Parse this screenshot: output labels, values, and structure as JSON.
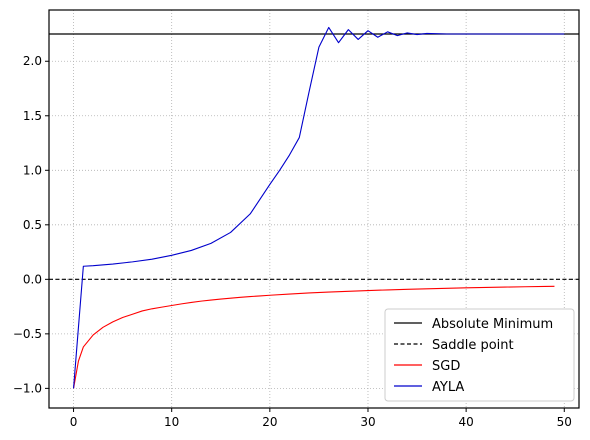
{
  "chart_data": {
    "type": "line",
    "title": "",
    "xlabel": "",
    "ylabel": "",
    "xlim": [
      -2.5,
      51.5
    ],
    "ylim": [
      -1.18,
      2.47
    ],
    "xticks": [
      0,
      10,
      20,
      30,
      40,
      50
    ],
    "yticks": [
      -1.0,
      -0.5,
      0.0,
      0.5,
      1.0,
      1.5,
      2.0
    ],
    "grid": true,
    "legend_position": "lower-right",
    "reference_lines": [
      {
        "name": "Absolute Minimum",
        "y": 2.25,
        "style": "solid",
        "color": "#000000"
      },
      {
        "name": "Saddle point",
        "y": 0.0,
        "style": "dashed",
        "color": "#000000"
      }
    ],
    "series": [
      {
        "name": "SGD",
        "color": "#ff0000",
        "x": [
          0,
          0.5,
          1,
          2,
          3,
          4,
          5,
          6,
          7,
          8,
          9,
          10,
          11,
          12,
          13,
          14,
          15,
          16,
          17,
          18,
          19,
          20,
          22,
          24,
          26,
          28,
          30,
          32,
          34,
          36,
          38,
          40,
          42,
          44,
          46,
          48,
          49
        ],
        "y": [
          -1.0,
          -0.75,
          -0.62,
          -0.51,
          -0.44,
          -0.39,
          -0.35,
          -0.32,
          -0.29,
          -0.27,
          -0.255,
          -0.24,
          -0.225,
          -0.212,
          -0.2,
          -0.19,
          -0.181,
          -0.173,
          -0.165,
          -0.158,
          -0.152,
          -0.146,
          -0.135,
          -0.125,
          -0.117,
          -0.11,
          -0.103,
          -0.097,
          -0.092,
          -0.087,
          -0.082,
          -0.078,
          -0.074,
          -0.071,
          -0.068,
          -0.065,
          -0.064
        ]
      },
      {
        "name": "AYLA",
        "color": "#0000cc",
        "x": [
          0,
          1,
          2,
          4,
          6,
          8,
          10,
          12,
          14,
          16,
          18,
          20,
          21,
          22,
          23,
          24,
          25,
          26,
          27,
          28,
          29,
          30,
          31,
          32,
          33,
          34,
          35,
          36,
          38,
          40,
          45,
          50
        ],
        "y": [
          -1.0,
          0.12,
          0.125,
          0.14,
          0.16,
          0.185,
          0.22,
          0.265,
          0.33,
          0.43,
          0.6,
          0.87,
          1.0,
          1.14,
          1.3,
          1.72,
          2.13,
          2.31,
          2.17,
          2.29,
          2.2,
          2.28,
          2.22,
          2.27,
          2.235,
          2.26,
          2.245,
          2.255,
          2.25,
          2.25,
          2.25,
          2.25
        ]
      }
    ],
    "legend": [
      "Absolute Minimum",
      "Saddle point",
      "SGD",
      "AYLA"
    ]
  }
}
